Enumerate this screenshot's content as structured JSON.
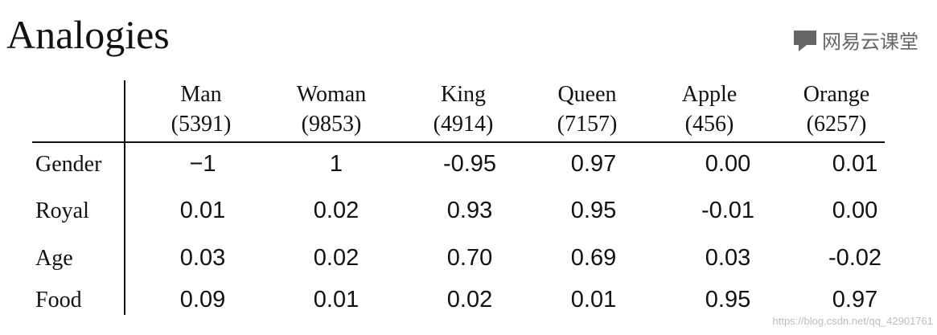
{
  "header": {
    "title": "Analogies",
    "watermark": "网易云课堂"
  },
  "table": {
    "columns": [
      {
        "name": "Man",
        "id": "(5391)"
      },
      {
        "name": "Woman",
        "id": "(9853)"
      },
      {
        "name": "King",
        "id": "(4914)"
      },
      {
        "name": "Queen",
        "id": "(7157)"
      },
      {
        "name": "Apple",
        "id": "(456)"
      },
      {
        "name": "Orange",
        "id": "(6257)"
      }
    ],
    "rows": [
      {
        "label": "Gender",
        "values": [
          "−1",
          "1",
          "-0.95",
          "0.97",
          "0.00",
          "0.01"
        ]
      },
      {
        "label": "Royal",
        "values": [
          "0.01",
          "0.02",
          "0.93",
          "0.95",
          "-0.01",
          "0.00"
        ]
      },
      {
        "label": "Age",
        "values": [
          "0.03",
          "0.02",
          "0.70",
          "0.69",
          "0.03",
          "-0.02"
        ]
      },
      {
        "label": "Food",
        "values": [
          "0.09",
          "0.01",
          "0.02",
          "0.01",
          "0.95",
          "0.97"
        ]
      }
    ]
  },
  "footer": {
    "url": "https://blog.csdn.net/qq_42901761"
  }
}
